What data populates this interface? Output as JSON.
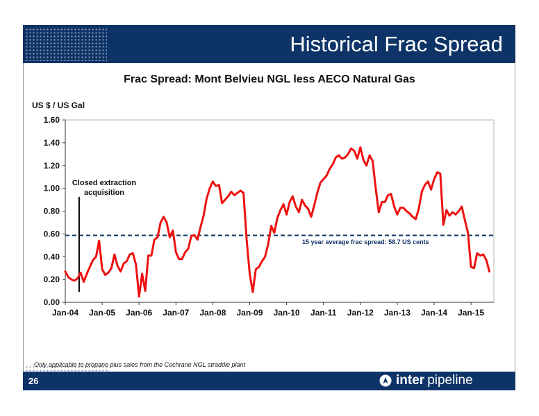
{
  "slide": {
    "title": "Historical Frac Spread",
    "page_number": "26",
    "footnote": "Only applicable to propane plus sales from the Cochrane NGL straddle plant",
    "logo_bold": "inter",
    "logo_text": "pipeline",
    "colors": {
      "navy": "#0e3467",
      "series": "#ee1111"
    }
  },
  "chart_data": {
    "type": "line",
    "title": "Frac Spread: Mont Belvieu NGL less AECO Natural Gas",
    "ylabel": "US $ / US Gal",
    "xlabel": "",
    "ylim": [
      0,
      1.6
    ],
    "yticks": [
      "0.00",
      "0.20",
      "0.40",
      "0.60",
      "0.80",
      "1.00",
      "1.20",
      "1.40",
      "1.60"
    ],
    "xticks": [
      "Jan-04",
      "Jan-05",
      "Jan-06",
      "Jan-07",
      "Jan-08",
      "Jan-09",
      "Jan-10",
      "Jan-11",
      "Jan-12",
      "Jan-13",
      "Jan-14",
      "Jan-15"
    ],
    "grid": false,
    "legend": "none",
    "series": [
      {
        "values": [
          0.27,
          0.22,
          0.2,
          0.19,
          0.21,
          0.26,
          0.18,
          0.25,
          0.31,
          0.37,
          0.4,
          0.54,
          0.29,
          0.24,
          0.26,
          0.3,
          0.42,
          0.32,
          0.27,
          0.34,
          0.36,
          0.42,
          0.43,
          0.33,
          0.05,
          0.25,
          0.1,
          0.41,
          0.41,
          0.55,
          0.57,
          0.7,
          0.75,
          0.7,
          0.57,
          0.63,
          0.44,
          0.38,
          0.38,
          0.44,
          0.47,
          0.58,
          0.59,
          0.55,
          0.66,
          0.76,
          0.91,
          1.0,
          1.06,
          1.02,
          1.03,
          0.87,
          0.9,
          0.93,
          0.97,
          0.94,
          0.96,
          0.98,
          0.96,
          0.55,
          0.25,
          0.09,
          0.29,
          0.31,
          0.36,
          0.4,
          0.51,
          0.67,
          0.61,
          0.74,
          0.81,
          0.86,
          0.77,
          0.88,
          0.93,
          0.84,
          0.79,
          0.9,
          0.85,
          0.82,
          0.75,
          0.85,
          0.96,
          1.05,
          1.08,
          1.11,
          1.17,
          1.21,
          1.27,
          1.29,
          1.26,
          1.27,
          1.3,
          1.35,
          1.33,
          1.26,
          1.36,
          1.25,
          1.2,
          1.29,
          1.24,
          1.0,
          0.79,
          0.88,
          0.88,
          0.94,
          0.95,
          0.84,
          0.77,
          0.83,
          0.83,
          0.8,
          0.78,
          0.75,
          0.73,
          0.82,
          0.97,
          1.03,
          1.06,
          0.99,
          1.08,
          1.14,
          1.13,
          0.68,
          0.81,
          0.76,
          0.79,
          0.77,
          0.8,
          0.84,
          0.72,
          0.61,
          0.31,
          0.3,
          0.43,
          0.41,
          0.42,
          0.37,
          0.27
        ]
      }
    ],
    "average": {
      "value": 0.587,
      "label": "15 year average frac spread: 58.7 US cents"
    },
    "annotation": {
      "label_line1": "Closed extraction",
      "label_line2": "acquisition",
      "x_month_index": 4.5
    }
  }
}
